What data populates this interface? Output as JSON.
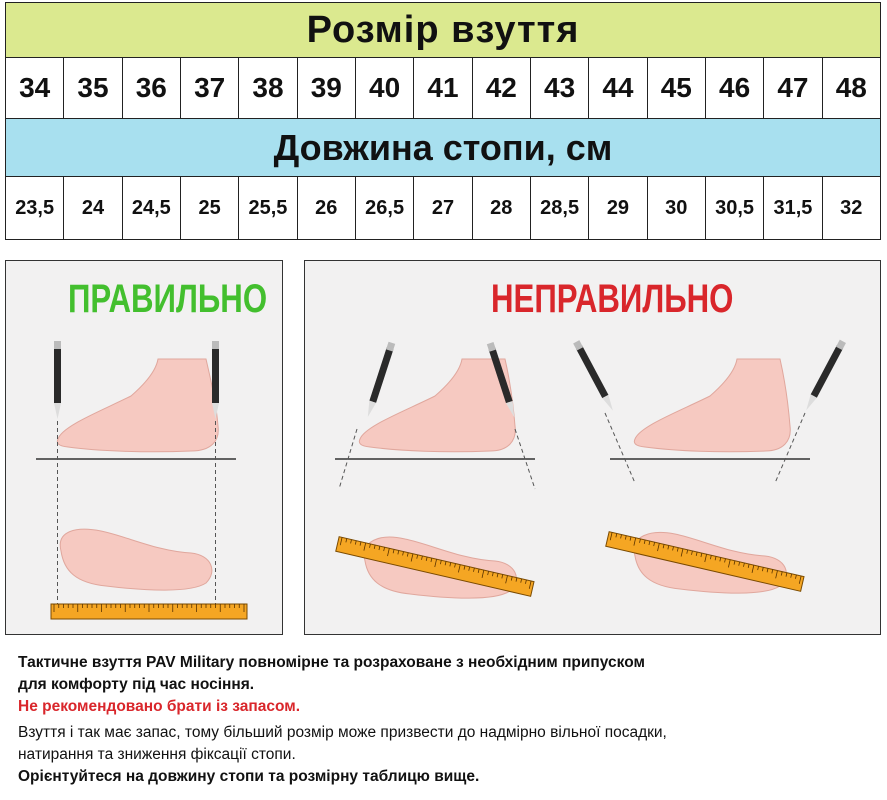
{
  "table": {
    "size_header": "Розмір взуття",
    "sizes": [
      "34",
      "35",
      "36",
      "37",
      "38",
      "39",
      "40",
      "41",
      "42",
      "43",
      "44",
      "45",
      "46",
      "47",
      "48"
    ],
    "length_header": "Довжина стопи, см",
    "lengths": [
      "23,5",
      "24",
      "24,5",
      "25",
      "25,5",
      "26",
      "26,5",
      "27",
      "28",
      "28,5",
      "29",
      "30",
      "30,5",
      "31,5",
      "32"
    ]
  },
  "panels": {
    "correct_title": "ПРАВИЛЬНО",
    "incorrect_title": "НЕПРАВИЛЬНО"
  },
  "notes": {
    "line1": "Тактичне взуття PAV Military повномірне та розраховане з необхідним припуском",
    "line2": "для комфорту під час носіння.",
    "warning": "Не рекомендовано брати із запасом.",
    "line3": "Взуття і так має запас, тому більший розмір може призвести до надмірно вільної посадки,",
    "line4": "натирання та зниження фіксації стопи.",
    "line5": "Орієнтуйтеся на довжину стопи та розмірну таблицю вище."
  },
  "colors": {
    "size_header_bg": "#dbe98f",
    "length_header_bg": "#a8e0ef",
    "correct": "#43bf2e",
    "incorrect": "#d9262b",
    "foot": "#f6c9c1",
    "ruler": "#f5a623"
  }
}
